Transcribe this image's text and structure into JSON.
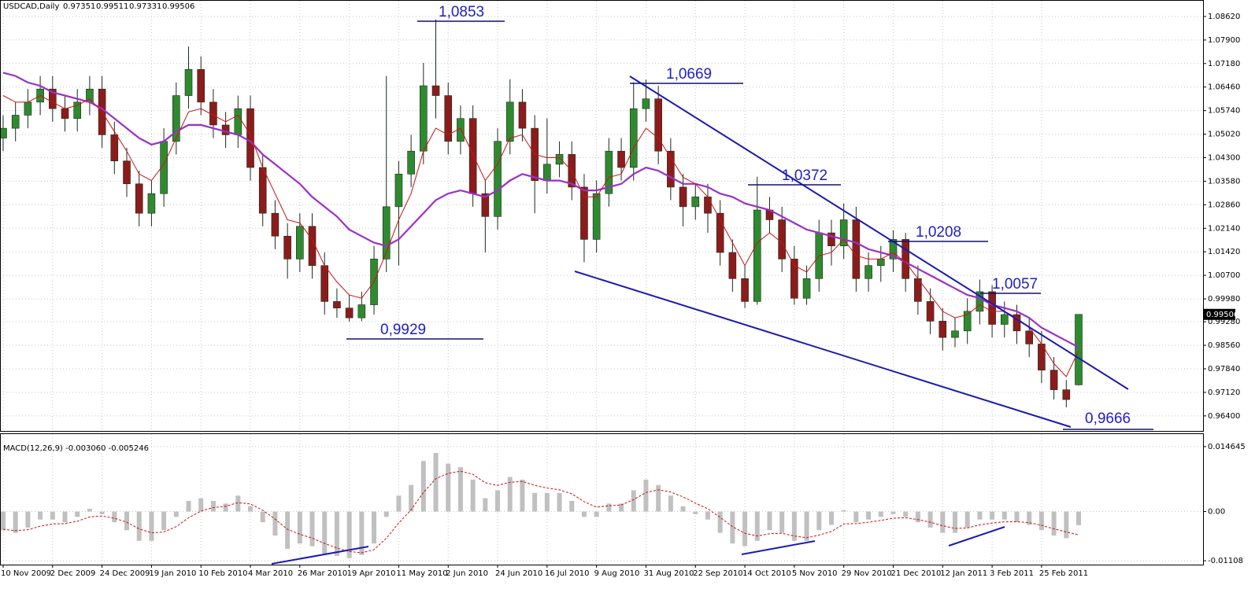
{
  "chart_data": [
    {
      "type": "candlestick",
      "title": "USDCAD,Daily",
      "categories": [
        "10 Nov 2009",
        null,
        null,
        null,
        "2 Dec 2009",
        null,
        null,
        null,
        "24 Dec 2009",
        null,
        null,
        null,
        "19 Jan 2010",
        null,
        null,
        null,
        "10 Feb 2010",
        null,
        null,
        null,
        "4 Mar 2010",
        null,
        null,
        null,
        "26 Mar 2010",
        null,
        null,
        null,
        "19 Apr 2010",
        null,
        null,
        null,
        "11 May 2010",
        null,
        null,
        null,
        "2 Jun 2010",
        null,
        null,
        null,
        "24 Jun 2010",
        null,
        null,
        null,
        "16 Jul 2010",
        null,
        null,
        null,
        "9 Aug 2010",
        null,
        null,
        null,
        "31 Aug 2010",
        null,
        null,
        null,
        "22 Sep 2010",
        null,
        null,
        null,
        "14 Oct 2010",
        null,
        null,
        null,
        "5 Nov 2010",
        null,
        null,
        null,
        "29 Nov 2010",
        null,
        null,
        null,
        "21 Dec 2010",
        null,
        null,
        null,
        "12 Jan 2011",
        null,
        null,
        null,
        "3 Feb 2011",
        null,
        null,
        null,
        "25 Feb 2011",
        null,
        null,
        null
      ],
      "open": [
        1.049,
        1.052,
        1.056,
        1.06,
        1.064,
        1.058,
        1.055,
        1.06,
        1.064,
        1.05,
        1.042,
        1.035,
        1.026,
        1.032,
        1.048,
        1.062,
        1.07,
        1.06,
        1.053,
        1.05,
        1.058,
        1.04,
        1.026,
        1.019,
        1.012,
        1.022,
        1.01,
        0.999,
        0.997,
        0.994,
        0.998,
        1.012,
        1.028,
        1.038,
        1.045,
        1.065,
        1.062,
        1.048,
        1.055,
        1.032,
        1.025,
        1.048,
        1.06,
        1.052,
        1.036,
        1.041,
        1.044,
        1.034,
        1.018,
        1.032,
        1.045,
        1.04,
        1.058,
        1.061,
        1.045,
        1.034,
        1.028,
        1.031,
        1.026,
        1.014,
        1.006,
        0.999,
        1.027,
        1.024,
        1.012,
        1.0,
        1.006,
        1.02,
        1.016,
        1.024,
        1.006,
        1.01,
        1.012,
        1.018,
        1.006,
        0.999,
        0.993,
        0.988,
        0.99,
        0.996,
        1.002,
        0.992,
        0.995,
        0.99,
        0.986,
        0.978,
        0.972,
        0.97351
      ],
      "high": [
        1.056,
        1.06,
        1.064,
        1.068,
        1.068,
        1.062,
        1.064,
        1.068,
        1.068,
        1.054,
        1.046,
        1.039,
        1.036,
        1.052,
        1.066,
        1.077,
        1.074,
        1.064,
        1.057,
        1.062,
        1.062,
        1.044,
        1.03,
        1.023,
        1.026,
        1.026,
        1.014,
        1.003,
        1.001,
        1.002,
        1.016,
        1.068,
        1.042,
        1.05,
        1.072,
        1.0853,
        1.066,
        1.059,
        1.059,
        1.036,
        1.052,
        1.067,
        1.064,
        1.056,
        1.055,
        1.048,
        1.048,
        1.038,
        1.036,
        1.049,
        1.049,
        1.066,
        1.0669,
        1.065,
        1.049,
        1.038,
        1.035,
        1.035,
        1.03,
        1.018,
        1.01,
        1.0372,
        1.031,
        1.028,
        1.016,
        1.01,
        1.024,
        1.024,
        1.029,
        1.028,
        1.014,
        1.016,
        1.0208,
        1.02,
        1.01,
        1.003,
        0.997,
        0.994,
        1.0,
        1.0057,
        1.004,
        0.999,
        0.998,
        0.994,
        0.99,
        0.982,
        0.975,
        0.99511
      ],
      "low": [
        1.045,
        1.048,
        1.052,
        1.056,
        1.054,
        1.051,
        1.051,
        1.056,
        1.046,
        1.038,
        1.031,
        1.022,
        1.022,
        1.028,
        1.044,
        1.058,
        1.056,
        1.049,
        1.046,
        1.046,
        1.036,
        1.022,
        1.015,
        1.006,
        1.008,
        1.006,
        0.995,
        0.994,
        0.9929,
        0.993,
        0.995,
        1.008,
        1.01,
        1.034,
        1.041,
        1.055,
        1.044,
        1.044,
        1.028,
        1.014,
        1.021,
        1.044,
        1.048,
        1.026,
        1.032,
        1.037,
        1.03,
        1.011,
        1.014,
        1.028,
        1.036,
        1.036,
        1.054,
        1.041,
        1.03,
        1.022,
        1.024,
        1.02,
        1.01,
        1.002,
        0.997,
        0.998,
        1.02,
        1.008,
        0.998,
        0.998,
        1.002,
        1.01,
        1.012,
        1.002,
        1.002,
        1.005,
        1.008,
        1.002,
        0.995,
        0.989,
        0.984,
        0.985,
        0.986,
        0.992,
        0.988,
        0.988,
        0.986,
        0.982,
        0.974,
        0.969,
        0.9666,
        0.97331
      ],
      "close": [
        1.052,
        1.056,
        1.06,
        1.064,
        1.058,
        1.055,
        1.06,
        1.064,
        1.05,
        1.042,
        1.035,
        1.026,
        1.032,
        1.048,
        1.062,
        1.07,
        1.06,
        1.053,
        1.05,
        1.058,
        1.04,
        1.026,
        1.019,
        1.012,
        1.022,
        1.01,
        0.999,
        0.997,
        0.994,
        0.998,
        1.012,
        1.028,
        1.038,
        1.045,
        1.065,
        1.062,
        1.048,
        1.055,
        1.032,
        1.025,
        1.048,
        1.06,
        1.052,
        1.036,
        1.041,
        1.044,
        1.034,
        1.018,
        1.032,
        1.045,
        1.04,
        1.058,
        1.061,
        1.045,
        1.034,
        1.028,
        1.031,
        1.026,
        1.014,
        1.006,
        0.999,
        1.027,
        1.024,
        1.012,
        1.0,
        1.006,
        1.02,
        1.016,
        1.024,
        1.006,
        1.01,
        1.012,
        1.018,
        1.006,
        0.999,
        0.993,
        0.988,
        0.99,
        0.996,
        1.002,
        0.992,
        0.995,
        0.99,
        0.986,
        0.978,
        0.972,
        0.969,
        0.99506
      ],
      "up_color": "#2f8a2f",
      "down_color": "#8c1c1c",
      "series": [
        {
          "color": "#9b30c8",
          "width": 2.2,
          "values": [
            1.069,
            1.068,
            1.066,
            1.065,
            1.063,
            1.062,
            1.061,
            1.06,
            1.058,
            1.055,
            1.052,
            1.049,
            1.047,
            1.048,
            1.051,
            1.053,
            1.053,
            1.052,
            1.051,
            1.05,
            1.048,
            1.044,
            1.041,
            1.038,
            1.035,
            1.031,
            1.028,
            1.025,
            1.021,
            1.019,
            1.017,
            1.016,
            1.018,
            1.022,
            1.026,
            1.03,
            1.032,
            1.033,
            1.032,
            1.031,
            1.033,
            1.036,
            1.038,
            1.037,
            1.036,
            1.036,
            1.035,
            1.033,
            1.033,
            1.034,
            1.035,
            1.038,
            1.04,
            1.039,
            1.037,
            1.035,
            1.035,
            1.034,
            1.032,
            1.031,
            1.029,
            1.028,
            1.027,
            1.025,
            1.023,
            1.021,
            1.02,
            1.019,
            1.018,
            1.017,
            1.015,
            1.014,
            1.013,
            1.011,
            1.009,
            1.007,
            1.005,
            1.003,
            1.001,
            1.0,
            0.998,
            0.997,
            0.996,
            0.994,
            0.991,
            0.989,
            0.987,
            0.985
          ]
        },
        {
          "color": "#c81414",
          "width": 1,
          "values": [
            1.062,
            1.06,
            1.06,
            1.062,
            1.06,
            1.058,
            1.059,
            1.061,
            1.057,
            1.051,
            1.045,
            1.038,
            1.036,
            1.041,
            1.049,
            1.057,
            1.058,
            1.056,
            1.054,
            1.056,
            1.05,
            1.04,
            1.032,
            1.024,
            1.023,
            1.018,
            1.01,
            1.005,
            1.001,
            1.0,
            1.005,
            1.014,
            1.024,
            1.032,
            1.045,
            1.052,
            1.05,
            1.052,
            1.044,
            1.036,
            1.041,
            1.049,
            1.05,
            1.044,
            1.043,
            1.043,
            1.039,
            1.031,
            1.031,
            1.037,
            1.038,
            1.046,
            1.052,
            1.049,
            1.043,
            1.037,
            1.035,
            1.031,
            1.024,
            1.017,
            1.01,
            1.017,
            1.02,
            1.017,
            1.01,
            1.008,
            1.013,
            1.014,
            1.018,
            1.013,
            1.012,
            1.012,
            1.014,
            1.011,
            1.006,
            1.001,
            0.996,
            0.994,
            0.995,
            0.998,
            0.996,
            0.996,
            0.994,
            0.991,
            0.986,
            0.98,
            0.976,
            0.984
          ]
        }
      ],
      "ylim": [
        0.9594,
        1.091
      ],
      "yticks": [
        {
          "value": 1.0862,
          "label": "1.08620"
        },
        {
          "value": 1.079,
          "label": "1.07900"
        },
        {
          "value": 1.0718,
          "label": "1.07180"
        },
        {
          "value": 1.0646,
          "label": "1.06460"
        },
        {
          "value": 1.0574,
          "label": "1.05740"
        },
        {
          "value": 1.0502,
          "label": "1.05020"
        },
        {
          "value": 1.043,
          "label": "1.04300"
        },
        {
          "value": 1.0358,
          "label": "1.03580"
        },
        {
          "value": 1.0286,
          "label": "1.02860"
        },
        {
          "value": 1.0214,
          "label": "1.02140"
        },
        {
          "value": 1.0142,
          "label": "1.01420"
        },
        {
          "value": 1.007,
          "label": "1.00700"
        },
        {
          "value": 0.9998,
          "label": "0.99980"
        },
        {
          "value": 0.9928,
          "label": "0.99280"
        },
        {
          "value": 0.9856,
          "label": "0.98560"
        },
        {
          "value": 0.9784,
          "label": "0.97840"
        },
        {
          "value": 0.9712,
          "label": "0.97120"
        },
        {
          "value": 0.964,
          "label": "0.96400"
        }
      ],
      "grid": true,
      "annotations": [
        "1,0853",
        "1,0669",
        "1,0372",
        "1,0208",
        "1,0057",
        "0,9929",
        "0,9666"
      ]
    },
    {
      "type": "macd",
      "title": "MACD(12,26,9) -0.003060 -0.005246",
      "color": "#c0c0c0",
      "values": [
        -0.0042,
        -0.0048,
        -0.0036,
        -0.0018,
        -0.0018,
        -0.0024,
        -0.0012,
        0.0006,
        -0.0006,
        -0.0024,
        -0.0042,
        -0.0066,
        -0.0066,
        -0.0042,
        -0.0012,
        0.0024,
        0.003,
        0.0024,
        0.0018,
        0.0036,
        0.0012,
        -0.0024,
        -0.0054,
        -0.0084,
        -0.0072,
        -0.0078,
        -0.0095,
        -0.01,
        -0.0105,
        -0.0098,
        -0.0072,
        -0.0012,
        0.0036,
        0.006,
        0.0114,
        0.0132,
        0.0108,
        0.01,
        0.0072,
        0.003,
        0.0048,
        0.0078,
        0.0072,
        0.0042,
        0.0042,
        0.0042,
        0.0024,
        -0.0012,
        -0.0012,
        0.0018,
        0.0018,
        0.0048,
        0.0072,
        0.006,
        0.0036,
        0.0012,
        -0.0006,
        -0.0018,
        -0.0048,
        -0.0072,
        -0.0078,
        -0.0066,
        -0.0042,
        -0.0048,
        -0.0066,
        -0.0066,
        -0.0042,
        -0.003,
        0.0003,
        -0.0024,
        -0.0018,
        -0.0012,
        -0.0006,
        -0.0012,
        -0.0024,
        -0.0036,
        -0.0048,
        -0.0048,
        -0.0036,
        -0.0018,
        -0.0018,
        -0.0018,
        -0.0024,
        -0.003,
        -0.0042,
        -0.0054,
        -0.006,
        -0.00306
      ],
      "series": [
        {
          "color": "#d01010",
          "values": [
            -0.004,
            -0.0043,
            -0.0041,
            -0.0033,
            -0.0028,
            -0.0027,
            -0.0022,
            -0.0012,
            -0.001,
            -0.0015,
            -0.0024,
            -0.0039,
            -0.0048,
            -0.0046,
            -0.0034,
            -0.0014,
            0.0001,
            0.0009,
            0.0012,
            0.002,
            0.0017,
            0.0003,
            -0.0017,
            -0.004,
            -0.0051,
            -0.006,
            -0.0072,
            -0.0082,
            -0.009,
            -0.0093,
            -0.0086,
            -0.006,
            -0.0026,
            0.0004,
            0.0043,
            0.0074,
            0.0086,
            0.0091,
            0.0084,
            0.0065,
            0.0059,
            0.0066,
            0.0068,
            0.0059,
            0.0053,
            0.0049,
            0.004,
            0.0022,
            0.001,
            0.0013,
            0.0015,
            0.0027,
            0.0043,
            0.0049,
            0.0044,
            0.0033,
            0.0019,
            0.0006,
            -0.0013,
            -0.0034,
            -0.0049,
            -0.0055,
            -0.005,
            -0.0049,
            -0.0055,
            -0.0059,
            -0.0053,
            -0.0045,
            -0.0028,
            -0.0027,
            -0.0024,
            -0.002,
            -0.0015,
            -0.0014,
            -0.0018,
            -0.0024,
            -0.0032,
            -0.0038,
            -0.0037,
            -0.003,
            -0.0026,
            -0.0023,
            -0.0023,
            -0.0025,
            -0.0031,
            -0.0039,
            -0.0046,
            -0.005246
          ]
        }
      ],
      "ylim": [
        -0.01196,
        0.017464
      ],
      "yticks": [
        0.014645,
        {
          "value": 0,
          "label": "0.00"
        },
        -0.01108
      ],
      "grid": true
    }
  ]
}
